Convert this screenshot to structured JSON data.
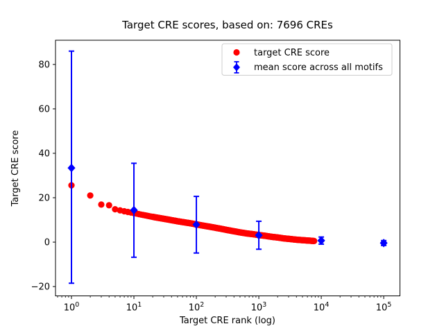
{
  "figure": {
    "title": "Target CRE scores, based on: 7696 CREs",
    "xlabel": "Target CRE rank (log)",
    "ylabel": "Target CRE score"
  },
  "legend": {
    "items": [
      {
        "marker": "red-circle-marker",
        "color": "#ff0000",
        "label": "target CRE score"
      },
      {
        "marker": "blue-diamond-errorbar-marker",
        "color": "#0000ff",
        "label": "mean score across all motifs"
      }
    ]
  },
  "chart_data": {
    "type": "scatter",
    "title": "Target CRE scores, based on: 7696 CREs",
    "xlabel": "Target CRE rank (log)",
    "ylabel": "Target CRE score",
    "x_scale": "log",
    "xlim": [
      0.555,
      182000
    ],
    "ylim": [
      -24.2,
      90.9
    ],
    "x_major_tick_exponents": [
      0,
      1,
      2,
      3,
      4,
      5
    ],
    "x_minor_tick_mantissas": [
      2,
      3,
      4,
      5,
      6,
      7,
      8,
      9
    ],
    "x_minor_ticks_below_one": [
      0.6,
      0.7,
      0.8,
      0.9
    ],
    "y_ticks": [
      -20,
      0,
      20,
      40,
      60,
      80
    ],
    "grid": false,
    "legend_position": "upper right",
    "colors": {
      "target": "#ff0000",
      "mean": "#0000ff",
      "axes": "#000000",
      "legend_border": "#cccccc"
    },
    "series": [
      {
        "name": "target CRE score",
        "type": "dense-scatter",
        "marker": "circle",
        "color": "#ff0000",
        "n_points_depicted": 7696,
        "rank_score_anchors": [
          [
            1,
            25.6
          ],
          [
            2,
            21.0
          ],
          [
            3,
            16.9
          ],
          [
            4,
            16.6
          ],
          [
            5,
            14.8
          ],
          [
            6,
            14.3
          ],
          [
            7,
            13.9
          ],
          [
            8,
            13.6
          ],
          [
            9,
            13.3
          ],
          [
            10,
            13.1
          ],
          [
            13,
            12.4
          ],
          [
            16,
            11.9
          ],
          [
            20,
            11.4
          ],
          [
            25,
            10.9
          ],
          [
            32,
            10.4
          ],
          [
            40,
            9.9
          ],
          [
            50,
            9.4
          ],
          [
            65,
            8.9
          ],
          [
            80,
            8.5
          ],
          [
            100,
            8.0
          ],
          [
            130,
            7.4
          ],
          [
            160,
            7.0
          ],
          [
            200,
            6.5
          ],
          [
            250,
            6.0
          ],
          [
            320,
            5.4
          ],
          [
            400,
            4.9
          ],
          [
            500,
            4.4
          ],
          [
            650,
            3.9
          ],
          [
            800,
            3.6
          ],
          [
            1000,
            3.2
          ],
          [
            1300,
            2.8
          ],
          [
            1600,
            2.4
          ],
          [
            2000,
            2.1
          ],
          [
            2500,
            1.7
          ],
          [
            3200,
            1.4
          ],
          [
            4000,
            1.1
          ],
          [
            5000,
            0.9
          ],
          [
            6300,
            0.7
          ],
          [
            7696,
            0.5
          ]
        ]
      },
      {
        "name": "mean score across all motifs",
        "type": "errorbar",
        "marker": "diamond",
        "color": "#0000ff",
        "points": [
          {
            "rank": 1,
            "mean": 33.4,
            "lo": -18.5,
            "hi": 86.0
          },
          {
            "rank": 10,
            "mean": 14.4,
            "lo": -6.8,
            "hi": 35.5
          },
          {
            "rank": 100,
            "mean": 7.9,
            "lo": -4.9,
            "hi": 20.6
          },
          {
            "rank": 1000,
            "mean": 3.1,
            "lo": -3.2,
            "hi": 9.4
          },
          {
            "rank": 10000,
            "mean": 0.7,
            "lo": -0.9,
            "hi": 2.3
          },
          {
            "rank": 100000,
            "mean": -0.4,
            "lo": -1.5,
            "hi": 0.7
          }
        ]
      }
    ]
  }
}
